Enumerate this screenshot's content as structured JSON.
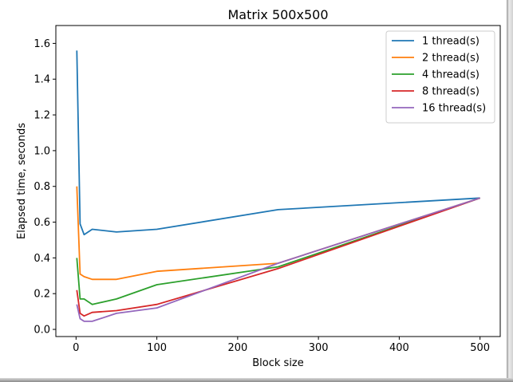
{
  "chart_data": {
    "type": "line",
    "title": "Matrix 500x500",
    "xlabel": "Block size",
    "ylabel": "Elapsed time, seconds",
    "xlim": [
      -25,
      525
    ],
    "ylim": [
      -0.04,
      1.7
    ],
    "xticks": [
      0,
      100,
      200,
      300,
      400,
      500
    ],
    "yticks": [
      0.0,
      0.2,
      0.4,
      0.6,
      0.8,
      1.0,
      1.2,
      1.4,
      1.6
    ],
    "x": [
      1,
      5,
      10,
      20,
      50,
      100,
      250,
      500
    ],
    "series": [
      {
        "name": "1 thread(s)",
        "color": "#1f77b4",
        "values": [
          1.56,
          0.59,
          0.53,
          0.56,
          0.545,
          0.56,
          0.67,
          0.735
        ]
      },
      {
        "name": "2 thread(s)",
        "color": "#ff7f0e",
        "values": [
          0.8,
          0.31,
          0.295,
          0.28,
          0.28,
          0.325,
          0.37,
          0.735
        ]
      },
      {
        "name": "4 thread(s)",
        "color": "#2ca02c",
        "values": [
          0.4,
          0.17,
          0.17,
          0.14,
          0.17,
          0.25,
          0.35,
          0.735
        ]
      },
      {
        "name": "8 thread(s)",
        "color": "#d62728",
        "values": [
          0.22,
          0.09,
          0.075,
          0.095,
          0.105,
          0.14,
          0.34,
          0.735
        ]
      },
      {
        "name": "16 thread(s)",
        "color": "#9467bd",
        "values": [
          0.14,
          0.06,
          0.045,
          0.045,
          0.09,
          0.12,
          0.37,
          0.735
        ]
      }
    ],
    "grid": false,
    "legend_position": "top-right"
  }
}
